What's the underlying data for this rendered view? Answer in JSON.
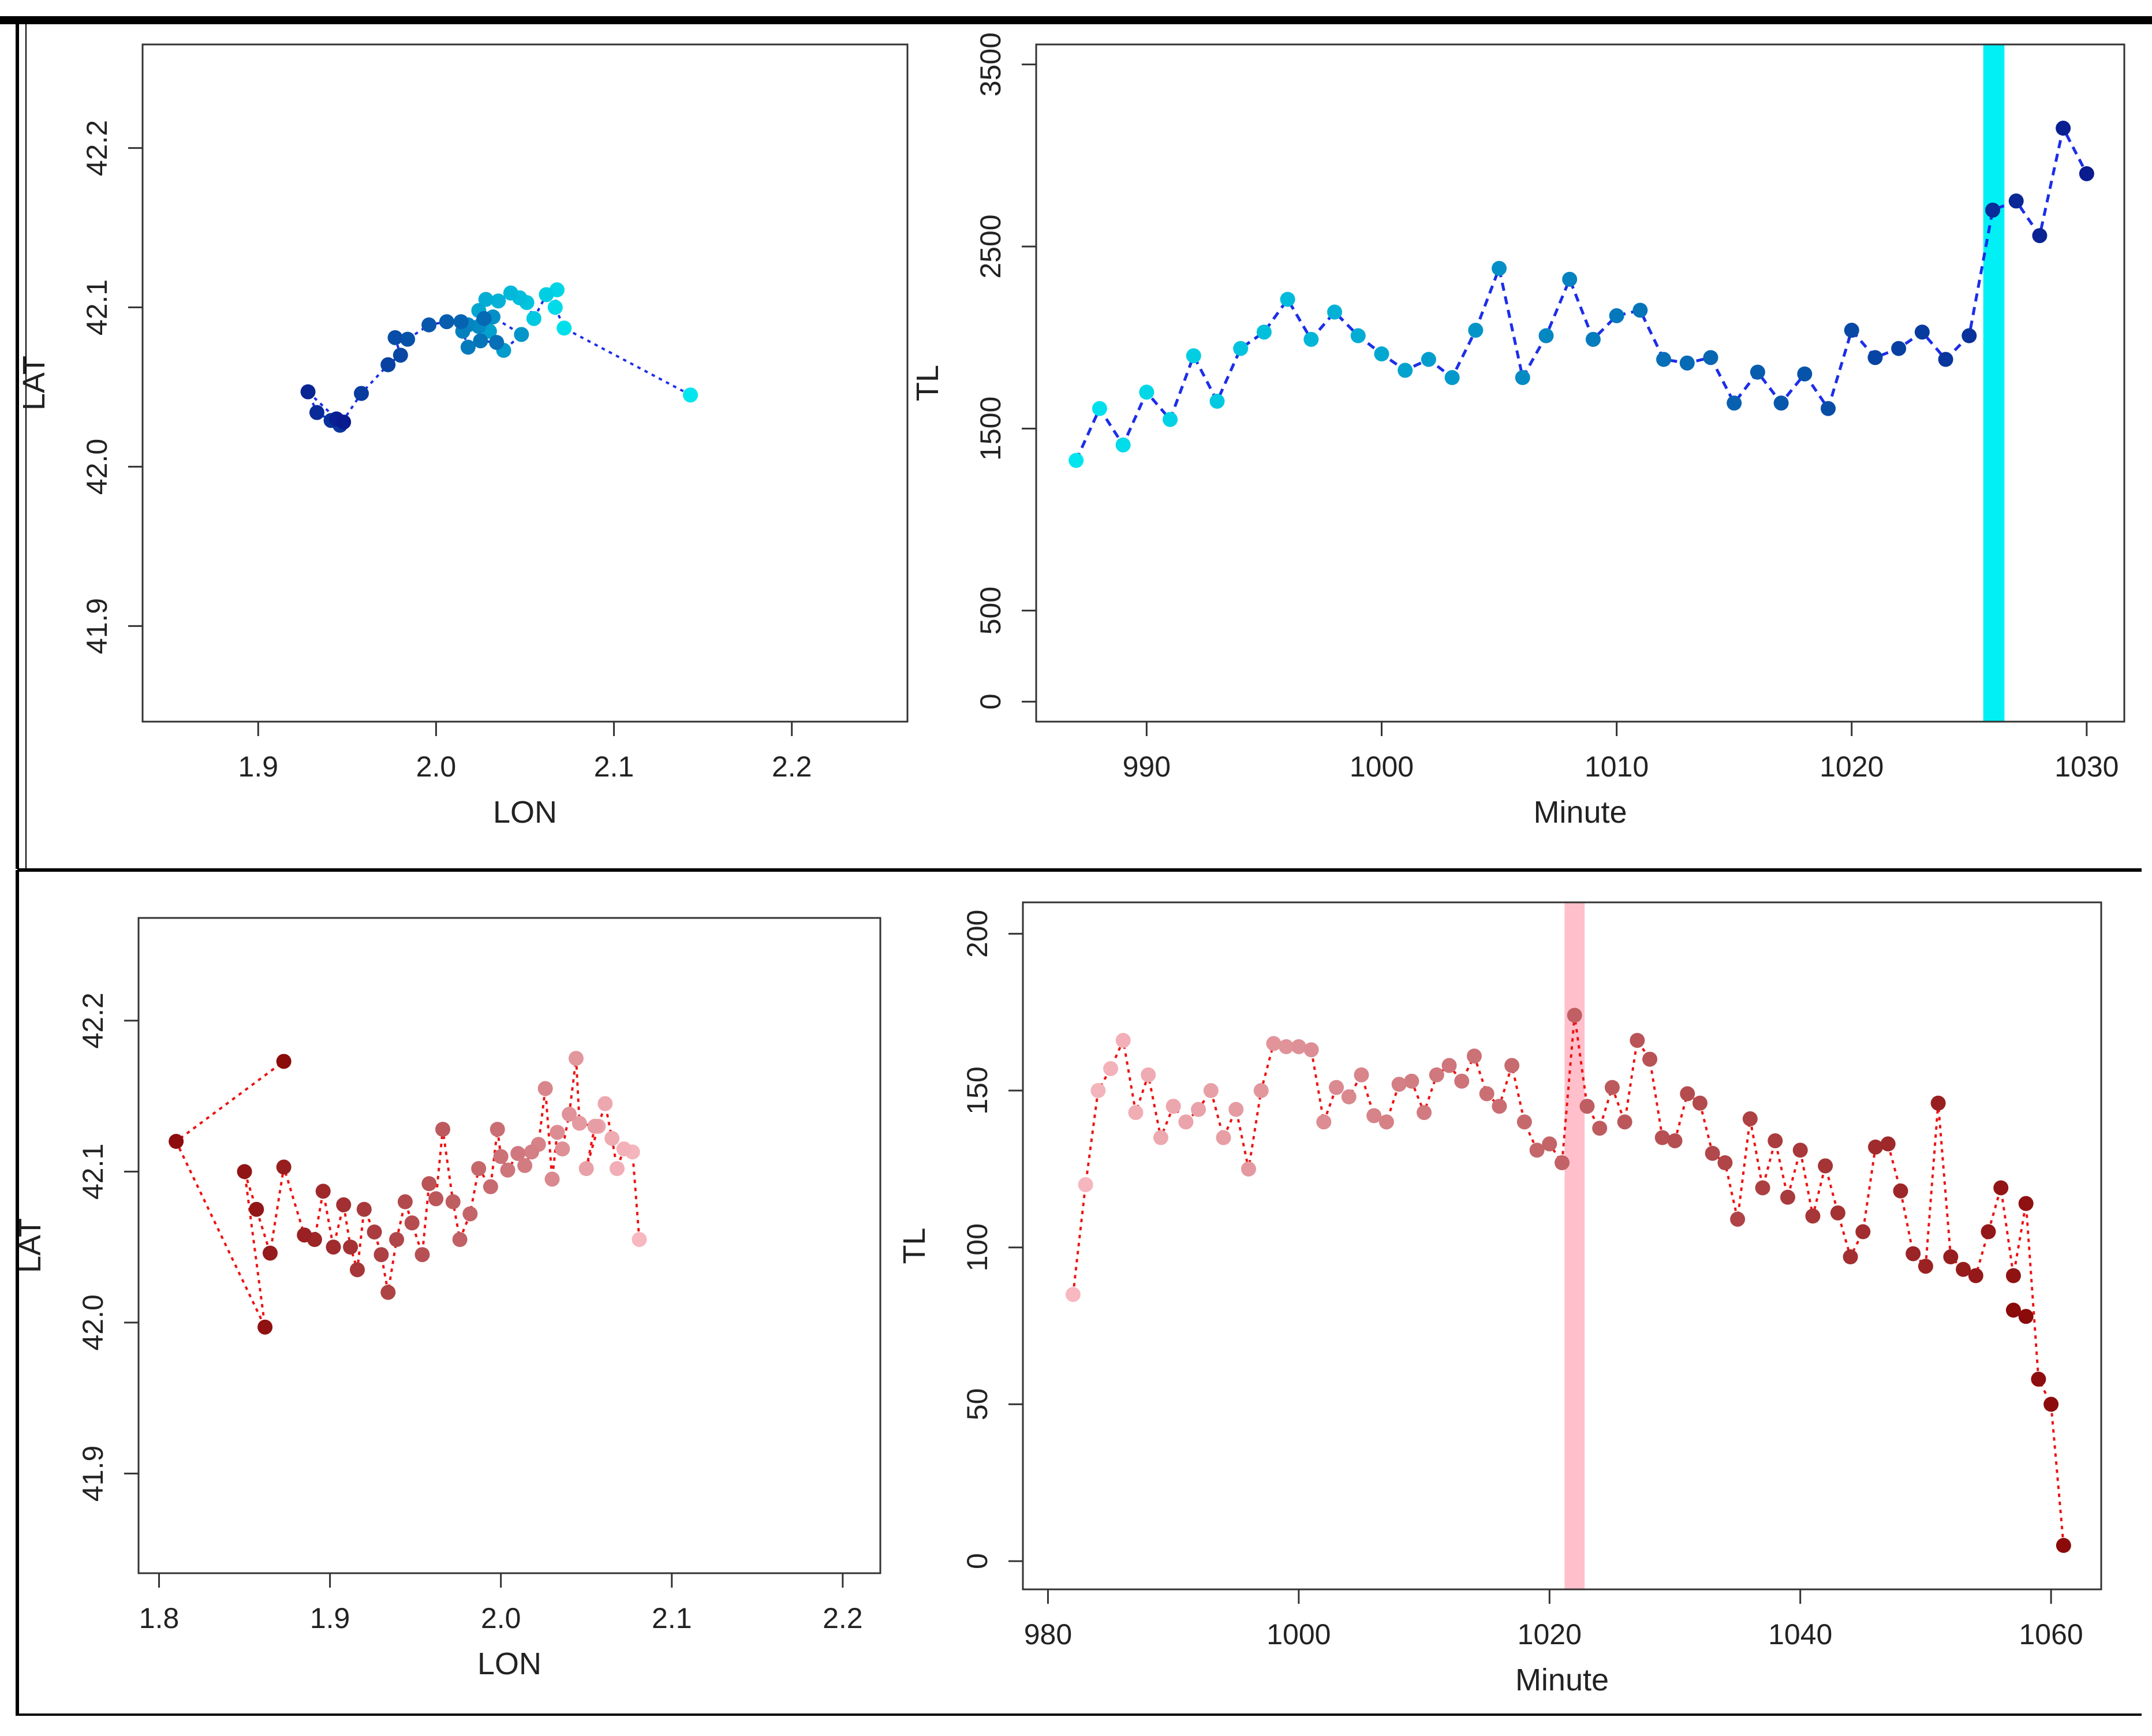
{
  "colors": {
    "top_line": "#1c2ee8",
    "top_marker_light": "#00e5ee",
    "top_marker_dark": "#0a1a8f",
    "top_highlight": "#00f0f5",
    "bottom_line": "#ee1111",
    "bottom_marker_light": "#f7b8c0",
    "bottom_marker_dark": "#8b0a0a",
    "bottom_highlight": "#ffc0cb"
  },
  "chart_data": [
    {
      "id": "top-left",
      "type": "scatter",
      "title": "",
      "xlabel": "LON",
      "ylabel": "LAT",
      "xlim": [
        1.835,
        2.265
      ],
      "ylim": [
        41.84,
        42.265
      ],
      "xticks": [
        1.9,
        2.0,
        2.1,
        2.2
      ],
      "xtick_labels": [
        "1.9",
        "2.0",
        "2.1",
        "2.2"
      ],
      "yticks": [
        41.9,
        42.0,
        42.1,
        42.2
      ],
      "ytick_labels": [
        "41.9",
        "42.0",
        "42.1",
        "42.2"
      ],
      "line_style": "dotted",
      "points": [
        [
          2.143,
          42.045
        ],
        [
          2.072,
          42.087
        ],
        [
          2.067,
          42.1
        ],
        [
          2.068,
          42.111
        ],
        [
          2.062,
          42.108
        ],
        [
          2.055,
          42.093
        ],
        [
          2.051,
          42.103
        ],
        [
          2.047,
          42.106
        ],
        [
          2.042,
          42.109
        ],
        [
          2.035,
          42.104
        ],
        [
          2.028,
          42.105
        ],
        [
          2.024,
          42.098
        ],
        [
          2.03,
          42.085
        ],
        [
          2.038,
          42.073
        ],
        [
          2.048,
          42.083
        ],
        [
          2.032,
          42.094
        ],
        [
          2.024,
          42.088
        ],
        [
          2.018,
          42.089
        ],
        [
          2.015,
          42.085
        ],
        [
          2.018,
          42.075
        ],
        [
          2.025,
          42.079
        ],
        [
          2.034,
          42.078
        ],
        [
          2.027,
          42.093
        ],
        [
          2.014,
          42.091
        ],
        [
          2.006,
          42.091
        ],
        [
          1.996,
          42.089
        ],
        [
          1.984,
          42.08
        ],
        [
          1.977,
          42.081
        ],
        [
          1.98,
          42.07
        ],
        [
          1.973,
          42.064
        ],
        [
          1.958,
          42.046
        ],
        [
          1.946,
          42.026
        ],
        [
          1.941,
          42.029
        ],
        [
          1.933,
          42.034
        ],
        [
          1.928,
          42.047
        ],
        [
          1.944,
          42.03
        ],
        [
          1.948,
          42.028
        ]
      ]
    },
    {
      "id": "top-right",
      "type": "line",
      "title": "",
      "xlabel": "Minute",
      "ylabel": "TL",
      "xlim": [
        985.3,
        1031.6
      ],
      "ylim": [
        -110,
        3610
      ],
      "xticks": [
        990,
        1000,
        1010,
        1020,
        1030
      ],
      "xtick_labels": [
        "990",
        "1000",
        "1010",
        "1020",
        "1030"
      ],
      "yticks": [
        0,
        500,
        1500,
        2500,
        3500
      ],
      "ytick_labels": [
        "0",
        "500",
        "1500",
        "2500",
        "3500"
      ],
      "highlight_x": [
        1025.6,
        1026.5
      ],
      "line_style": "dashed",
      "x": [
        987,
        988,
        989,
        990,
        991,
        992,
        993,
        994,
        995,
        996,
        997,
        998,
        999,
        1000,
        1001,
        1002,
        1003,
        1004,
        1005,
        1006,
        1007,
        1008,
        1009,
        1010,
        1011,
        1012,
        1013,
        1014,
        1015,
        1016,
        1017,
        1018,
        1019,
        1020,
        1021,
        1022,
        1023,
        1024,
        1025,
        1026,
        1027,
        1028,
        1029,
        1030
      ],
      "y": [
        1325,
        1610,
        1410,
        1700,
        1550,
        1900,
        1650,
        1940,
        2030,
        2210,
        1990,
        2140,
        2010,
        1910,
        1820,
        1880,
        1780,
        2040,
        2380,
        1780,
        2010,
        2320,
        1990,
        2120,
        2150,
        1880,
        1860,
        1890,
        1640,
        1810,
        1640,
        1800,
        1610,
        2040,
        1890,
        1940,
        2030,
        1880,
        2010,
        2700,
        2750,
        2560,
        3150,
        2900
      ]
    },
    {
      "id": "bottom-left",
      "type": "scatter",
      "title": "",
      "xlabel": "LON",
      "ylabel": "LAT",
      "xlim": [
        1.788,
        2.222
      ],
      "ylim": [
        41.834,
        42.268
      ],
      "xticks": [
        1.8,
        1.9,
        2.0,
        2.1,
        2.2
      ],
      "xtick_labels": [
        "1.8",
        "1.9",
        "2.0",
        "2.1",
        "2.2"
      ],
      "yticks": [
        41.9,
        42.0,
        42.1,
        42.2
      ],
      "ytick_labels": [
        "41.9",
        "42.0",
        "42.1",
        "42.2"
      ],
      "line_style": "dotted",
      "points": [
        [
          2.081,
          42.055
        ],
        [
          2.077,
          42.113
        ],
        [
          2.072,
          42.115
        ],
        [
          2.068,
          42.102
        ],
        [
          2.065,
          42.122
        ],
        [
          2.061,
          42.145
        ],
        [
          2.057,
          42.13
        ],
        [
          2.05,
          42.102
        ],
        [
          2.055,
          42.13
        ],
        [
          2.046,
          42.132
        ],
        [
          2.044,
          42.175
        ],
        [
          2.04,
          42.138
        ],
        [
          2.036,
          42.115
        ],
        [
          2.033,
          42.126
        ],
        [
          2.03,
          42.095
        ],
        [
          2.026,
          42.155
        ],
        [
          2.022,
          42.118
        ],
        [
          2.018,
          42.113
        ],
        [
          2.014,
          42.104
        ],
        [
          2.01,
          42.112
        ],
        [
          2.004,
          42.101
        ],
        [
          2.0,
          42.11
        ],
        [
          1.998,
          42.128
        ],
        [
          1.994,
          42.09
        ],
        [
          1.987,
          42.102
        ],
        [
          1.982,
          42.072
        ],
        [
          1.976,
          42.055
        ],
        [
          1.972,
          42.08
        ],
        [
          1.966,
          42.128
        ],
        [
          1.962,
          42.082
        ],
        [
          1.958,
          42.092
        ],
        [
          1.954,
          42.045
        ],
        [
          1.948,
          42.066
        ],
        [
          1.944,
          42.08
        ],
        [
          1.939,
          42.055
        ],
        [
          1.934,
          42.02
        ],
        [
          1.93,
          42.045
        ],
        [
          1.926,
          42.06
        ],
        [
          1.92,
          42.075
        ],
        [
          1.916,
          42.035
        ],
        [
          1.912,
          42.05
        ],
        [
          1.908,
          42.078
        ],
        [
          1.902,
          42.05
        ],
        [
          1.896,
          42.087
        ],
        [
          1.891,
          42.055
        ],
        [
          1.885,
          42.058
        ],
        [
          1.873,
          42.103
        ],
        [
          1.865,
          42.046
        ],
        [
          1.857,
          42.075
        ],
        [
          1.85,
          42.1
        ],
        [
          1.862,
          41.997
        ],
        [
          1.81,
          42.12
        ],
        [
          1.873,
          42.173
        ]
      ]
    },
    {
      "id": "bottom-right",
      "type": "line",
      "title": "",
      "xlabel": "Minute",
      "ylabel": "TL",
      "xlim": [
        978.0,
        1064.0
      ],
      "ylim": [
        -9,
        210
      ],
      "xticks": [
        980,
        1000,
        1020,
        1040,
        1060
      ],
      "xtick_labels": [
        "980",
        "1000",
        "1020",
        "1040",
        "1060"
      ],
      "yticks": [
        0,
        50,
        100,
        150,
        200
      ],
      "ytick_labels": [
        "0",
        "50",
        "100",
        "150",
        "200"
      ],
      "highlight_x": [
        1021.2,
        1022.8
      ],
      "line_style": "dotted",
      "x": [
        982,
        983,
        984,
        985,
        986,
        987,
        988,
        989,
        990,
        991,
        992,
        993,
        994,
        995,
        996,
        997,
        998,
        999,
        1000,
        1001,
        1002,
        1003,
        1004,
        1005,
        1006,
        1007,
        1008,
        1009,
        1010,
        1011,
        1012,
        1013,
        1014,
        1015,
        1016,
        1017,
        1018,
        1019,
        1020,
        1021,
        1022,
        1023,
        1024,
        1025,
        1026,
        1027,
        1028,
        1029,
        1030,
        1031,
        1032,
        1033,
        1034,
        1035,
        1036,
        1037,
        1038,
        1039,
        1040,
        1041,
        1042,
        1043,
        1044,
        1045,
        1046,
        1047,
        1048,
        1049,
        1050,
        1051,
        1052,
        1053,
        1054,
        1055,
        1056,
        1057,
        1058,
        1059,
        1060,
        1061
      ],
      "y": [
        85,
        120,
        150,
        157,
        166,
        143,
        155,
        135,
        145,
        140,
        144,
        150,
        135,
        144,
        125,
        150,
        165,
        164,
        164,
        163,
        140,
        151,
        148,
        155,
        142,
        140,
        152,
        153,
        143,
        155,
        158,
        153,
        161,
        149,
        145,
        158,
        140,
        131,
        133,
        127,
        174,
        145,
        138,
        151,
        140,
        166,
        160,
        135,
        134,
        149,
        146,
        130,
        127,
        109,
        141,
        119,
        134,
        116,
        131,
        110,
        126,
        111,
        97,
        105,
        132,
        133,
        118,
        98,
        94,
        146,
        97,
        93,
        91,
        105,
        119,
        91,
        114,
        58,
        50,
        5
      ],
      "extra_points": [
        [
          1057,
          80
        ],
        [
          1058,
          78
        ]
      ]
    }
  ]
}
